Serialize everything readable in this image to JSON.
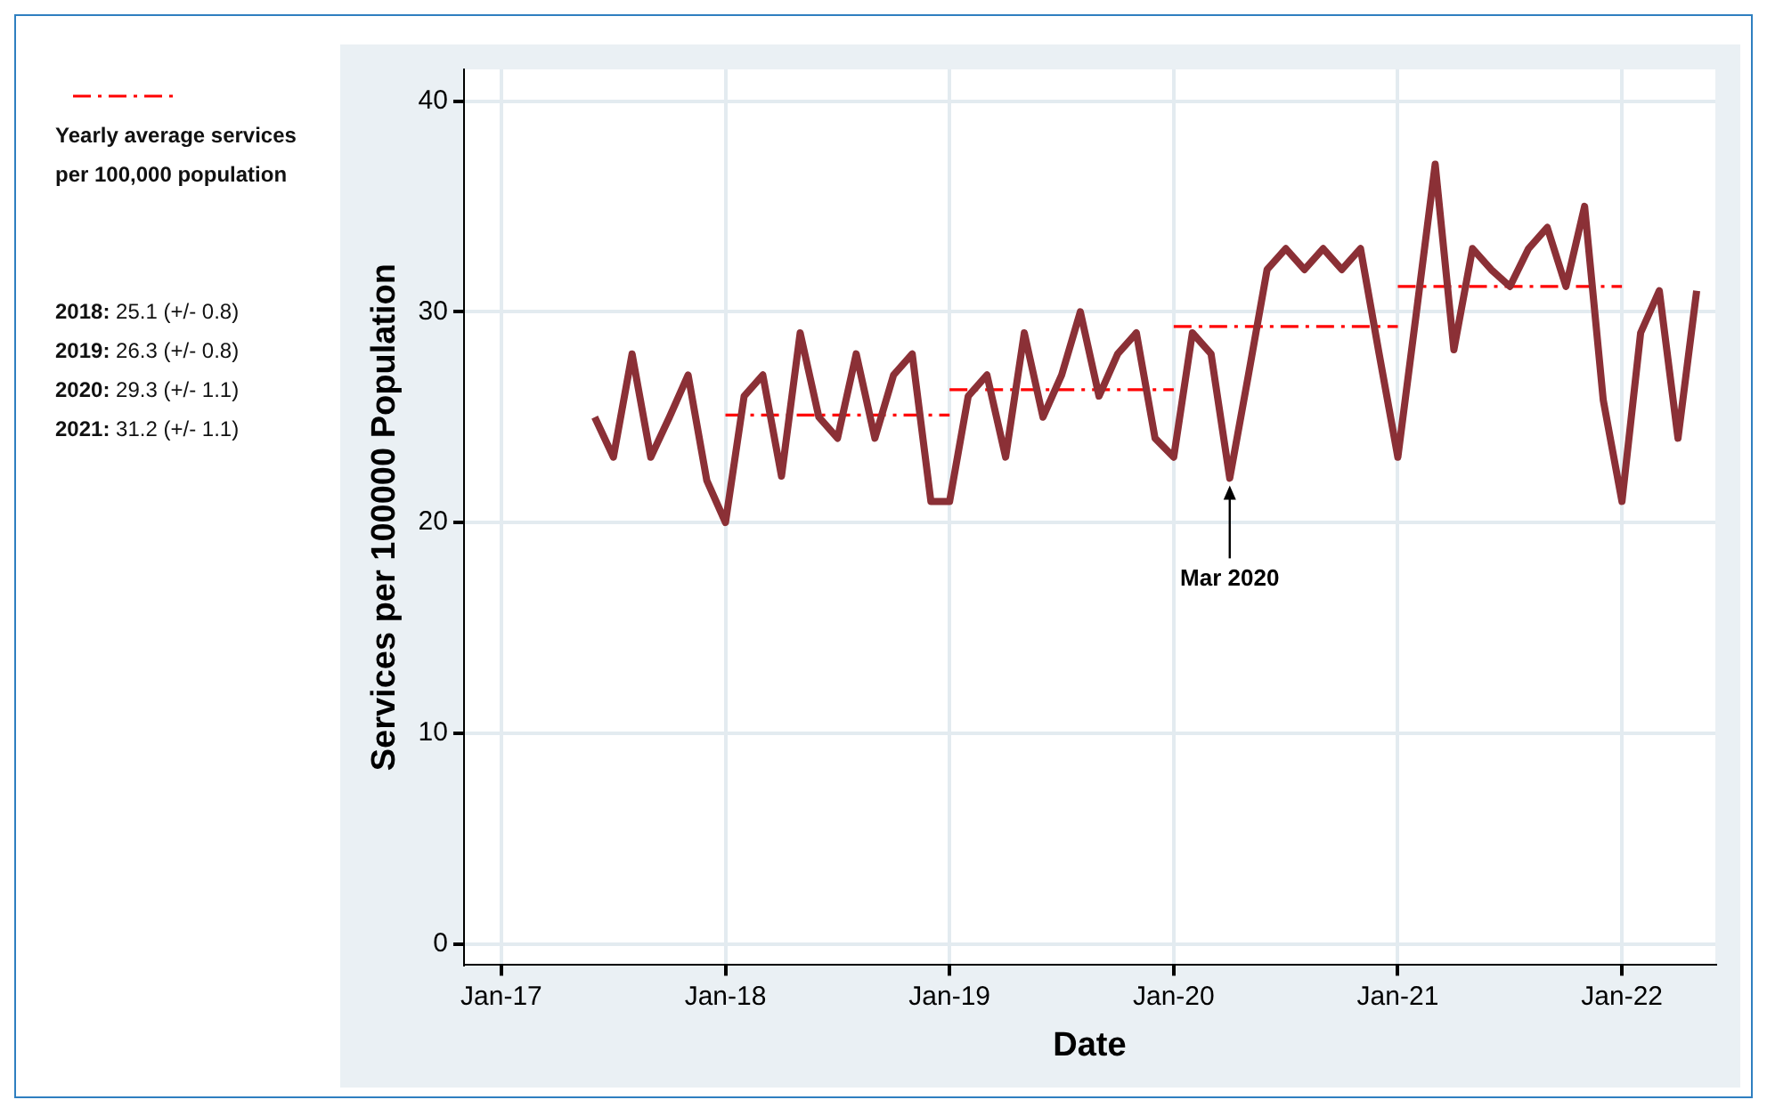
{
  "chart_data": {
    "type": "line",
    "xlabel": "Date",
    "ylabel": "Services per 100000 Population",
    "legend": "left",
    "grid": true,
    "marker": "none",
    "xlim": [
      "2016-11",
      "2022-06"
    ],
    "xticks": [
      {
        "value": "2017-01",
        "label": "Jan-17"
      },
      {
        "value": "2018-01",
        "label": "Jan-18"
      },
      {
        "value": "2019-01",
        "label": "Jan-19"
      },
      {
        "value": "2020-01",
        "label": "Jan-20"
      },
      {
        "value": "2021-01",
        "label": "Jan-21"
      },
      {
        "value": "2022-01",
        "label": "Jan-22"
      }
    ],
    "ylim": [
      -1,
      41.5
    ],
    "yticks": [
      0,
      10,
      20,
      30,
      40
    ],
    "x": [
      "2017-06",
      "2017-07",
      "2017-08",
      "2017-09",
      "2017-10",
      "2017-11",
      "2017-12",
      "2018-01",
      "2018-02",
      "2018-03",
      "2018-04",
      "2018-05",
      "2018-06",
      "2018-07",
      "2018-08",
      "2018-09",
      "2018-10",
      "2018-11",
      "2018-12",
      "2019-01",
      "2019-02",
      "2019-03",
      "2019-04",
      "2019-05",
      "2019-06",
      "2019-07",
      "2019-08",
      "2019-09",
      "2019-10",
      "2019-11",
      "2019-12",
      "2020-01",
      "2020-02",
      "2020-03",
      "2020-04",
      "2020-05",
      "2020-06",
      "2020-07",
      "2020-08",
      "2020-09",
      "2020-10",
      "2020-11",
      "2020-12",
      "2021-01",
      "2021-02",
      "2021-03",
      "2021-04",
      "2021-05",
      "2021-06",
      "2021-07",
      "2021-08",
      "2021-09",
      "2021-10",
      "2021-11",
      "2021-12",
      "2022-01",
      "2022-02",
      "2022-03",
      "2022-04",
      "2022-05"
    ],
    "series": [
      {
        "color": "#8b3036",
        "line_style": "solid",
        "values": [
          25,
          23.1,
          28,
          23.1,
          25,
          27,
          22,
          20,
          26,
          27,
          22.2,
          29,
          25,
          24,
          28,
          24,
          27,
          28,
          21,
          21,
          26,
          27,
          23.1,
          29,
          25,
          27,
          30,
          26,
          28,
          29,
          24,
          23.1,
          29,
          28,
          22.1,
          27,
          32,
          33,
          32,
          33,
          32,
          33,
          28,
          23.1,
          30,
          37,
          28.2,
          33,
          32,
          31.2,
          33,
          34,
          31.2,
          35,
          25.8,
          21,
          29,
          31,
          24,
          31
        ]
      },
      {
        "name": "Yearly average services per 100,000 population",
        "color": "#ff0000",
        "line_style": "dashed",
        "x": [
          "2018-01",
          "2019-01"
        ],
        "values": [
          25.1,
          25.1
        ]
      },
      {
        "color": "#ff0000",
        "line_style": "dashed",
        "x": [
          "2019-01",
          "2020-01"
        ],
        "values": [
          26.3,
          26.3
        ]
      },
      {
        "color": "#ff0000",
        "line_style": "dashed",
        "x": [
          "2020-01",
          "2021-01"
        ],
        "values": [
          29.3,
          29.3
        ]
      },
      {
        "color": "#ff0000",
        "line_style": "dashed",
        "x": [
          "2021-01",
          "2022-01"
        ],
        "values": [
          31.2,
          31.2
        ]
      }
    ],
    "annotations": [
      "2018: 25.1 (+/- 0.8)",
      "2019: 26.3 (+/- 0.8)",
      "2020: 29.3 (+/- 1.1)",
      "2021: 31.2 (+/- 1.1)",
      {
        "text": "Mar 2020",
        "x": "2020-04",
        "y": 22.1
      }
    ]
  }
}
